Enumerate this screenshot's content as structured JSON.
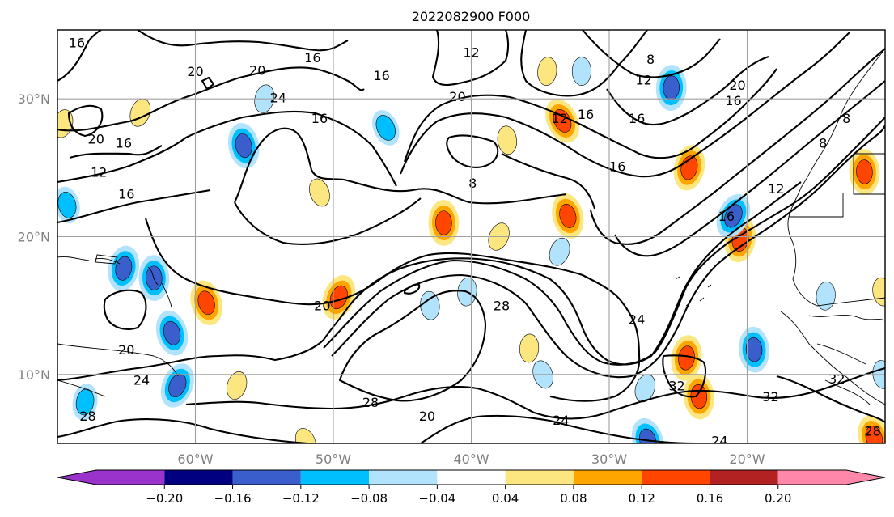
{
  "title": "2022082900 F000",
  "map": {
    "lon_range": [
      -70,
      -10
    ],
    "lat_range": [
      5,
      35
    ],
    "grid": true,
    "lon_ticks": [
      {
        "value": -60,
        "label": "60°W"
      },
      {
        "value": -50,
        "label": "50°W"
      },
      {
        "value": -40,
        "label": "40°W"
      },
      {
        "value": -30,
        "label": "30°W"
      },
      {
        "value": -20,
        "label": "20°W"
      }
    ],
    "lat_ticks": [
      {
        "value": 30,
        "label": "30°N"
      },
      {
        "value": 20,
        "label": "20°N"
      },
      {
        "value": 10,
        "label": "10°N"
      }
    ],
    "tick_color": "#808080",
    "contour_labels": [
      {
        "text": "16",
        "lon": -68.6,
        "lat": 34.1
      },
      {
        "text": "20",
        "lon": -60.0,
        "lat": 32.0
      },
      {
        "text": "20",
        "lon": -55.5,
        "lat": 32.1
      },
      {
        "text": "16",
        "lon": -51.5,
        "lat": 33.0
      },
      {
        "text": "12",
        "lon": -40.0,
        "lat": 33.4
      },
      {
        "text": "8",
        "lon": -27.0,
        "lat": 32.9
      },
      {
        "text": "16",
        "lon": -46.5,
        "lat": 31.7
      },
      {
        "text": "12",
        "lon": -27.5,
        "lat": 31.4
      },
      {
        "text": "20",
        "lon": -20.7,
        "lat": 31.0
      },
      {
        "text": "16",
        "lon": -21.0,
        "lat": 29.9
      },
      {
        "text": "24",
        "lon": -54.0,
        "lat": 30.1
      },
      {
        "text": "20",
        "lon": -41.0,
        "lat": 30.2
      },
      {
        "text": "12",
        "lon": -33.6,
        "lat": 28.6
      },
      {
        "text": "16",
        "lon": -31.7,
        "lat": 28.9
      },
      {
        "text": "16",
        "lon": -28.0,
        "lat": 28.6
      },
      {
        "text": "16",
        "lon": -51.0,
        "lat": 28.6
      },
      {
        "text": "8",
        "lon": -12.8,
        "lat": 28.6
      },
      {
        "text": "20",
        "lon": -67.2,
        "lat": 27.1
      },
      {
        "text": "16",
        "lon": -65.2,
        "lat": 26.8
      },
      {
        "text": "8",
        "lon": -14.5,
        "lat": 26.8
      },
      {
        "text": "16",
        "lon": -29.4,
        "lat": 25.1
      },
      {
        "text": "12",
        "lon": -67.0,
        "lat": 24.7
      },
      {
        "text": "8",
        "lon": -39.9,
        "lat": 23.9
      },
      {
        "text": "12",
        "lon": -17.9,
        "lat": 23.5
      },
      {
        "text": "16",
        "lon": -65.0,
        "lat": 23.1
      },
      {
        "text": "16",
        "lon": -21.5,
        "lat": 21.5
      },
      {
        "text": "20",
        "lon": -50.8,
        "lat": 15.0
      },
      {
        "text": "28",
        "lon": -37.8,
        "lat": 15.0
      },
      {
        "text": "24",
        "lon": -28.0,
        "lat": 14.0
      },
      {
        "text": "20",
        "lon": -65.0,
        "lat": 11.8
      },
      {
        "text": "24",
        "lon": -63.9,
        "lat": 9.6
      },
      {
        "text": "32",
        "lon": -25.1,
        "lat": 9.2
      },
      {
        "text": "32",
        "lon": -13.5,
        "lat": 9.7
      },
      {
        "text": "32",
        "lon": -18.3,
        "lat": 8.4
      },
      {
        "text": "28",
        "lon": -67.8,
        "lat": 7.0
      },
      {
        "text": "28",
        "lon": -47.3,
        "lat": 8.0
      },
      {
        "text": "20",
        "lon": -43.2,
        "lat": 7.0
      },
      {
        "text": "24",
        "lon": -33.5,
        "lat": 6.7
      },
      {
        "text": "24",
        "lon": -22.0,
        "lat": 5.2
      },
      {
        "text": "28",
        "lon": -10.9,
        "lat": 5.9
      }
    ],
    "anomaly_patches": [
      {
        "lon": -33.4,
        "lat": 28.4,
        "value": 0.1
      },
      {
        "lon": -24.2,
        "lat": 25.0,
        "value": 0.1
      },
      {
        "lon": -42.0,
        "lat": 21.0,
        "value": 0.12
      },
      {
        "lon": -33.0,
        "lat": 21.5,
        "value": 0.1
      },
      {
        "lon": -38.0,
        "lat": 20.0,
        "value": 0.06
      },
      {
        "lon": -20.5,
        "lat": 19.8,
        "value": 0.1
      },
      {
        "lon": -11.5,
        "lat": 24.7,
        "value": 0.1
      },
      {
        "lon": -59.2,
        "lat": 15.2,
        "value": 0.12
      },
      {
        "lon": -49.6,
        "lat": 15.6,
        "value": 0.12
      },
      {
        "lon": -24.4,
        "lat": 11.2,
        "value": 0.1
      },
      {
        "lon": -23.5,
        "lat": 8.4,
        "value": 0.1
      },
      {
        "lon": -10.8,
        "lat": 5.4,
        "value": 0.12
      },
      {
        "lon": -64.0,
        "lat": 29.0,
        "value": 0.06
      },
      {
        "lon": -34.5,
        "lat": 32.0,
        "value": 0.06
      },
      {
        "lon": -37.4,
        "lat": 27.0,
        "value": 0.06
      },
      {
        "lon": -51.0,
        "lat": 23.2,
        "value": 0.06
      },
      {
        "lon": -57.0,
        "lat": 9.2,
        "value": 0.06
      },
      {
        "lon": -35.8,
        "lat": 11.9,
        "value": 0.06
      },
      {
        "lon": -10.2,
        "lat": 16.0,
        "value": 0.06
      },
      {
        "lon": -52.0,
        "lat": 5.1,
        "value": 0.06
      },
      {
        "lon": -69.6,
        "lat": 28.2,
        "value": 0.06
      },
      {
        "lon": -25.5,
        "lat": 30.8,
        "value": -0.1
      },
      {
        "lon": -56.5,
        "lat": 26.6,
        "value": -0.1
      },
      {
        "lon": -46.2,
        "lat": 27.9,
        "value": -0.08
      },
      {
        "lon": -55.0,
        "lat": 30.0,
        "value": -0.06
      },
      {
        "lon": -32.0,
        "lat": 32.0,
        "value": -0.06
      },
      {
        "lon": -69.3,
        "lat": 22.3,
        "value": -0.08
      },
      {
        "lon": -21.0,
        "lat": 21.5,
        "value": -0.1
      },
      {
        "lon": -65.2,
        "lat": 17.7,
        "value": -0.1
      },
      {
        "lon": -63.0,
        "lat": 17.0,
        "value": -0.1
      },
      {
        "lon": -61.7,
        "lat": 13.0,
        "value": -0.1
      },
      {
        "lon": -61.3,
        "lat": 9.2,
        "value": -0.12
      },
      {
        "lon": -68.0,
        "lat": 8.0,
        "value": -0.08
      },
      {
        "lon": -19.5,
        "lat": 11.8,
        "value": -0.1
      },
      {
        "lon": -27.2,
        "lat": 5.2,
        "value": -0.12
      },
      {
        "lon": -33.6,
        "lat": 18.9,
        "value": -0.06
      },
      {
        "lon": -40.3,
        "lat": 16.0,
        "value": -0.06
      },
      {
        "lon": -43.0,
        "lat": 15.0,
        "value": -0.06
      },
      {
        "lon": -34.8,
        "lat": 10.0,
        "value": -0.06
      },
      {
        "lon": -27.4,
        "lat": 9.0,
        "value": -0.06
      },
      {
        "lon": -14.3,
        "lat": 15.7,
        "value": -0.06
      },
      {
        "lon": -10.2,
        "lat": 10.0,
        "value": -0.06
      }
    ]
  },
  "colorbar": {
    "extend": "both",
    "tick_labels": [
      "−0.20",
      "−0.16",
      "−0.12",
      "−0.08",
      "−0.04",
      "0.04",
      "0.08",
      "0.12",
      "0.16",
      "0.20"
    ],
    "colors": {
      "below": "#9933cc",
      "bins": [
        "#000080",
        "#3a5fcd",
        "#00bfff",
        "#b2e3fc",
        "#ffffff",
        "#fce680",
        "#ffa500",
        "#ff4500",
        "#b22222"
      ],
      "above": "#ff88aa"
    }
  }
}
